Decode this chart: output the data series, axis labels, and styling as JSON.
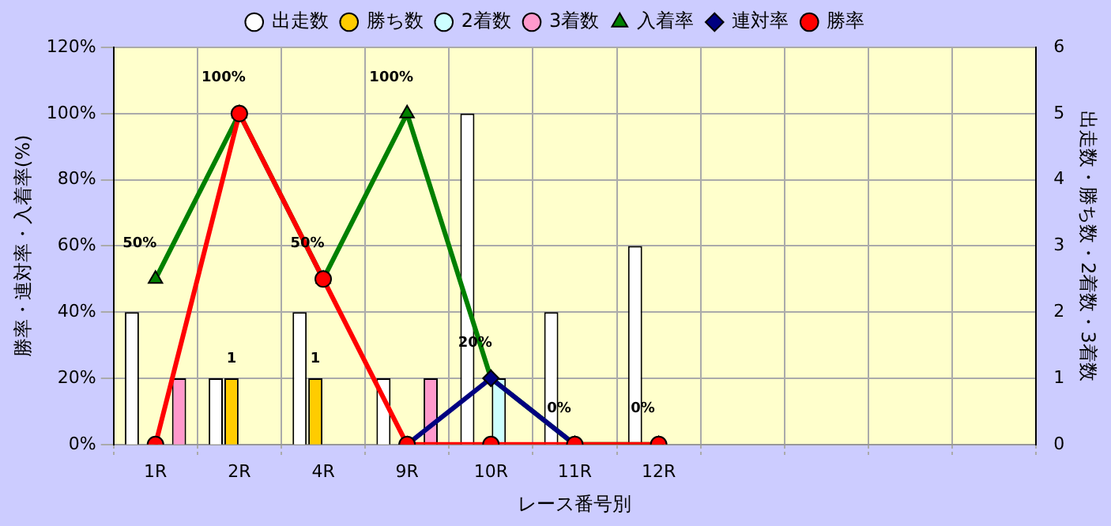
{
  "chart_data": {
    "type": "bar",
    "xlabel": "レース番号別",
    "ylabel": "勝率・連対率・入着率(%)",
    "y2label": "出走数・勝ち数・2着数・3着数",
    "categories": [
      "1R",
      "2R",
      "4R",
      "9R",
      "10R",
      "11R",
      "12R",
      null,
      null,
      null,
      null
    ],
    "series": [
      {
        "name": "出走数",
        "axis": "y2",
        "color": "#ffffff",
        "values": [
          2,
          1,
          2,
          1,
          5,
          2,
          3,
          null,
          null,
          null,
          null
        ]
      },
      {
        "name": "勝ち数",
        "axis": "y2",
        "color": "#ffcc00",
        "values": [
          0,
          1,
          1,
          0,
          0,
          0,
          0,
          null,
          null,
          null,
          null
        ],
        "value_labels": [
          null,
          "1",
          "1",
          null,
          null,
          null,
          null,
          null,
          null,
          null,
          null
        ]
      },
      {
        "name": "2着数",
        "axis": "y2",
        "color": "#ccffff",
        "values": [
          0,
          0,
          0,
          0,
          1,
          0,
          0,
          null,
          null,
          null,
          null
        ]
      },
      {
        "name": "3着数",
        "axis": "y2",
        "color": "#ff99cc",
        "values": [
          1,
          0,
          0,
          1,
          0,
          0,
          0,
          null,
          null,
          null,
          null
        ]
      },
      {
        "name": "入着率",
        "type": "line",
        "color": "#008000",
        "marker": "triangle",
        "values": [
          50,
          100,
          50,
          100,
          20,
          0,
          0,
          null,
          null,
          null,
          null
        ],
        "value_labels": [
          "50%",
          "100%",
          "50%",
          "100%",
          "20%",
          "0%",
          "0%",
          null,
          null,
          null,
          null
        ]
      },
      {
        "name": "連対率",
        "type": "line",
        "color": "#000080",
        "marker": "diamond",
        "values": [
          null,
          null,
          null,
          0,
          20,
          0,
          null,
          null,
          null,
          null,
          null
        ]
      },
      {
        "name": "勝率",
        "type": "line",
        "color": "#ff0000",
        "marker": "circle",
        "values": [
          0,
          100,
          50,
          0,
          0,
          0,
          0,
          null,
          null,
          null,
          null
        ]
      }
    ],
    "ylim": [
      0,
      120
    ],
    "yticks": [
      {
        "value": 0,
        "label": "0%"
      },
      {
        "value": 20,
        "label": "20%"
      },
      {
        "value": 40,
        "label": "40%"
      },
      {
        "value": 60,
        "label": "60%"
      },
      {
        "value": 80,
        "label": "80%"
      },
      {
        "value": 100,
        "label": "100%"
      },
      {
        "value": 120,
        "label": "120%"
      }
    ],
    "y2lim": [
      0,
      6
    ],
    "y2ticks": [
      0,
      1,
      2,
      3,
      4,
      5,
      6
    ],
    "grid": true,
    "legend": "top"
  }
}
